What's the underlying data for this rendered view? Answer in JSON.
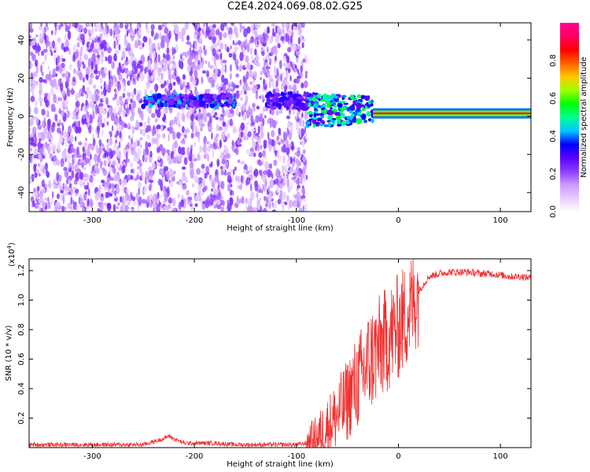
{
  "title": "C2E4.2024.069.08.02.G25",
  "chart_data": [
    {
      "type": "heatmap",
      "title": "C2E4.2024.069.08.02.G25",
      "xlabel": "Height of straight line (km)",
      "ylabel": "Frequency (Hz)",
      "xlim": [
        -362,
        130
      ],
      "ylim": [
        -50,
        49
      ],
      "xticks": [
        -300,
        -200,
        -100,
        0,
        100
      ],
      "yticks": [
        -40,
        -20,
        0,
        20,
        40
      ],
      "colorbar": {
        "label": "Normalized spectral amplitude",
        "range": [
          0,
          1
        ],
        "ticks": [
          0.0,
          0.2,
          0.4,
          0.6,
          0.8
        ],
        "colors": [
          "#ffffff",
          "#e6ccff",
          "#cc99ff",
          "#8a3dff",
          "#5a00ff",
          "#0000ff",
          "#00c8ff",
          "#00ff90",
          "#00ff00",
          "#a0ff00",
          "#ffc800",
          "#ff6000",
          "#ff0000",
          "#ff0060",
          "#ff0090"
        ]
      },
      "features": [
        {
          "kind": "noise",
          "x_range": [
            -362,
            -90
          ],
          "y_range": [
            -50,
            49
          ],
          "amplitude": [
            0.05,
            0.25
          ]
        },
        {
          "kind": "band",
          "x_range": [
            -250,
            -160
          ],
          "center_hz": 8,
          "width_hz": 3,
          "amplitude": [
            0.2,
            0.45
          ]
        },
        {
          "kind": "band",
          "x_range": [
            -130,
            -80
          ],
          "center_hz": 8,
          "width_hz": 4,
          "amplitude": [
            0.2,
            0.35
          ]
        },
        {
          "kind": "band",
          "x_range": [
            -90,
            -25
          ],
          "center_hz": 3,
          "width_hz": 8,
          "amplitude": [
            0.25,
            0.55
          ]
        },
        {
          "kind": "carrier",
          "x_range": [
            -25,
            130
          ],
          "center_hz": 1.5,
          "width_hz": 1.5,
          "amplitude": [
            0.85,
            0.95
          ]
        }
      ]
    },
    {
      "type": "line",
      "xlabel": "Height of straight line (km)",
      "ylabel": "SNR (10 * v/v)",
      "yscale_label": "(x10",
      "yscale_exp": "4",
      "yscale_close": ")",
      "xlim": [
        -362,
        130
      ],
      "ylim": [
        0.0,
        1.28
      ],
      "xticks": [
        -300,
        -200,
        -100,
        0,
        100
      ],
      "yticks": [
        0.2,
        0.4,
        0.6,
        0.8,
        1.0,
        1.2
      ],
      "color": "#f03030",
      "series": [
        {
          "x": [
            -362,
            -300,
            -250,
            -240,
            -230,
            -225,
            -220,
            -210,
            -200,
            -180,
            -160,
            -140,
            -120,
            -100,
            -90,
            -80,
            -70,
            -60,
            -50,
            -45,
            -40,
            -35,
            -30,
            -25,
            -20,
            -15,
            -10,
            -5,
            0,
            10,
            20,
            30,
            40,
            50,
            60,
            70,
            80,
            90,
            100,
            110,
            120,
            130
          ],
          "y": [
            0.02,
            0.02,
            0.02,
            0.04,
            0.06,
            0.08,
            0.06,
            0.03,
            0.03,
            0.03,
            0.02,
            0.02,
            0.02,
            0.02,
            0.03,
            0.06,
            0.14,
            0.22,
            0.32,
            0.4,
            0.44,
            0.5,
            0.56,
            0.62,
            0.66,
            0.7,
            0.74,
            0.78,
            0.82,
            0.92,
            1.06,
            1.16,
            1.18,
            1.19,
            1.19,
            1.19,
            1.18,
            1.18,
            1.17,
            1.16,
            1.16,
            1.15
          ]
        }
      ]
    }
  ]
}
